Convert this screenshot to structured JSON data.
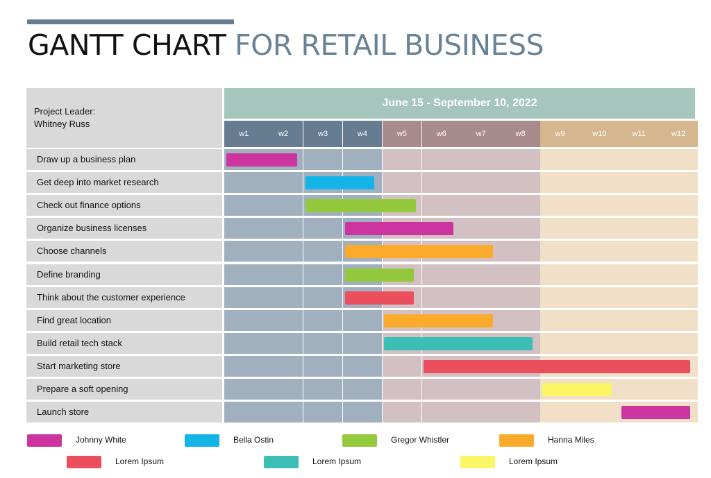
{
  "header": {
    "title_part1": "GANTT CHART",
    "title_part2": "FOR RETAIL BUSINESS",
    "accent_color": "#667d91"
  },
  "leader": {
    "label": "Project Leader:",
    "name": "Whitney Russ"
  },
  "chart_data": {
    "type": "gantt",
    "date_range_label": "June 15 - September 10, 2022",
    "weeks": [
      "w1",
      "w2",
      "w3",
      "w4",
      "w5",
      "w6",
      "w7",
      "w8",
      "w9",
      "w10",
      "w11",
      "w12"
    ],
    "phase_colors": {
      "header": [
        "#667d91",
        "#667d91",
        "#667d91",
        "#667d91",
        "#a88b8c",
        "#a88b8c",
        "#a88b8c",
        "#a88b8c",
        "#d6b68e",
        "#d6b68e",
        "#d6b68e",
        "#d6b68e"
      ],
      "cells": [
        "#a0b0be",
        "#a0b0be",
        "#a0b0be",
        "#a0b0be",
        "#d3c0c3",
        "#d3c0c3",
        "#d3c0c3",
        "#d3c0c3",
        "#f1e0c7",
        "#f1e0c7",
        "#f1e0c7",
        "#f1e0c7"
      ]
    },
    "tasks": [
      {
        "name": "Draw up a business plan",
        "start": 0.05,
        "end": 1.85,
        "owner": 0
      },
      {
        "name": "Get deep into market research",
        "start": 2.05,
        "end": 3.8,
        "owner": 1
      },
      {
        "name": "Check out finance options",
        "start": 2.05,
        "end": 4.85,
        "owner": 2
      },
      {
        "name": "Organize business licenses",
        "start": 3.05,
        "end": 5.8,
        "owner": 0
      },
      {
        "name": "Choose channels",
        "start": 3.05,
        "end": 6.8,
        "owner": 3
      },
      {
        "name": "Define branding",
        "start": 3.05,
        "end": 4.8,
        "owner": 2
      },
      {
        "name": "Think about the customer experience",
        "start": 3.05,
        "end": 4.8,
        "owner": 4
      },
      {
        "name": "Find great location",
        "start": 4.05,
        "end": 6.8,
        "owner": 3
      },
      {
        "name": "Build retail tech stack",
        "start": 4.05,
        "end": 7.8,
        "owner": 5
      },
      {
        "name": "Start marketing store",
        "start": 5.05,
        "end": 11.8,
        "owner": 4
      },
      {
        "name": "Prepare a soft opening",
        "start": 8.05,
        "end": 9.8,
        "owner": 6
      },
      {
        "name": "Launch store",
        "start": 10.05,
        "end": 11.8,
        "owner": 0
      }
    ],
    "legend": [
      {
        "name": "Johnny White",
        "color": "#cc35a0"
      },
      {
        "name": "Bella Ostin",
        "color": "#15b4e8"
      },
      {
        "name": "Gregor Whistler",
        "color": "#94c83d"
      },
      {
        "name": "Hanna Miles",
        "color": "#fbab2b"
      },
      {
        "name": "Lorem Ipsum",
        "color": "#eb4f5e"
      },
      {
        "name": "Lorem Ipsum",
        "color": "#3dbeb4"
      },
      {
        "name": "Lorem Ipsum",
        "color": "#fbf666"
      }
    ]
  }
}
